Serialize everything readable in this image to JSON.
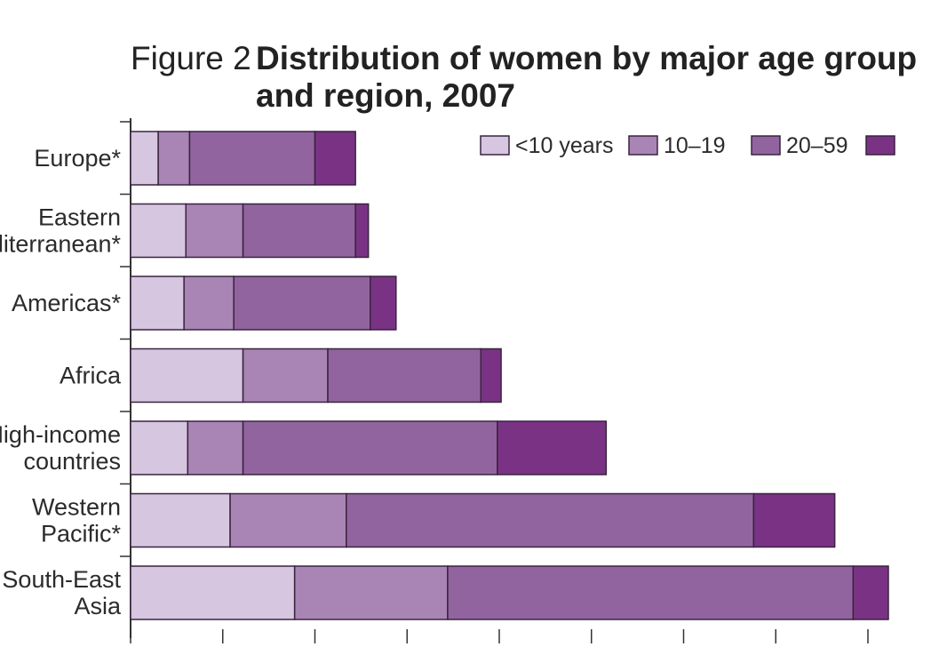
{
  "chart_data": {
    "type": "bar",
    "orientation": "horizontal",
    "stacked": true,
    "title_prefix": "Figure 2",
    "title_line1": "Distribution of women by major age group",
    "title_line2": "and region, 2007",
    "categories": [
      [
        "Europe*"
      ],
      [
        "Eastern",
        "Mediterranean*"
      ],
      [
        "Americas*"
      ],
      [
        "Africa"
      ],
      [
        "High-income",
        "countries"
      ],
      [
        "Western",
        "Pacific*"
      ],
      [
        "South-East",
        "Asia"
      ]
    ],
    "series": [
      {
        "name": "<10 years",
        "color": "#d6c6e0",
        "values": [
          15,
          30,
          29,
          61,
          31,
          54,
          89
        ]
      },
      {
        "name": "10–19",
        "color": "#a985b6",
        "values": [
          17,
          31,
          27,
          46,
          30,
          63,
          83
        ]
      },
      {
        "name": "20–59",
        "color": "#92649f",
        "values": [
          68,
          61,
          74,
          83,
          138,
          221,
          220
        ]
      },
      {
        "name": "",
        "color": "#7a3384",
        "values": [
          22,
          7,
          14,
          11,
          59,
          44,
          20
        ]
      }
    ],
    "xlim": [
      0,
      410
    ],
    "xticks": [
      0,
      50,
      100,
      150,
      200,
      250,
      300,
      350,
      400
    ],
    "legend_position": "top-right",
    "grid": false
  }
}
